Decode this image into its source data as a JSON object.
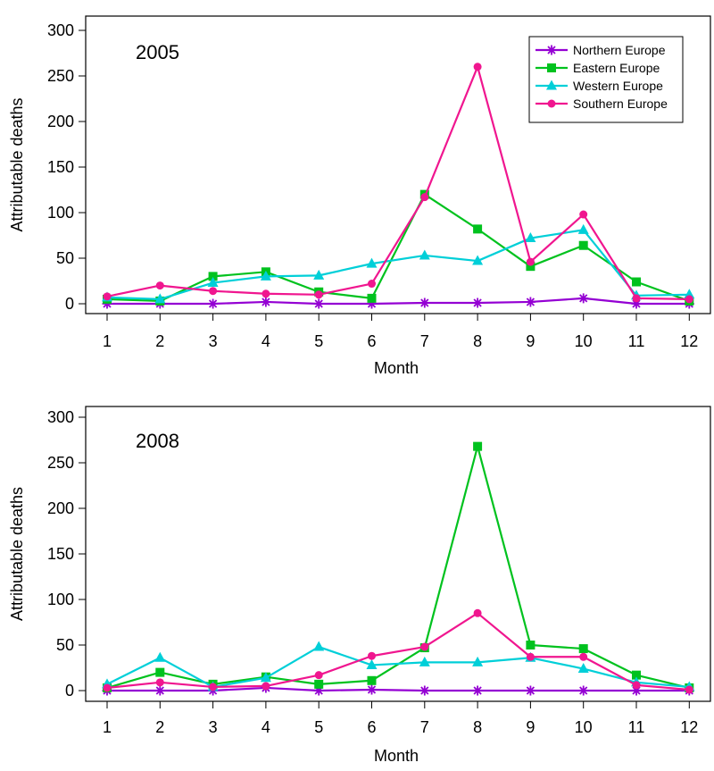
{
  "chart_data": [
    {
      "type": "line",
      "title": "2005",
      "xlabel": "Month",
      "ylabel": "Attributable deaths",
      "ylim": [
        0,
        300
      ],
      "yticks": [
        0,
        50,
        100,
        150,
        200,
        250,
        300
      ],
      "categories": [
        "1",
        "2",
        "3",
        "4",
        "5",
        "6",
        "7",
        "8",
        "9",
        "10",
        "11",
        "12"
      ],
      "legend": true,
      "series": [
        {
          "name": "Northern Europe",
          "color": "#9400d3",
          "marker": "asterisk",
          "values": [
            0,
            0,
            0,
            2,
            0,
            0,
            1,
            1,
            2,
            6,
            0,
            0
          ]
        },
        {
          "name": "Eastern Europe",
          "color": "#00c21e",
          "marker": "square",
          "values": [
            5,
            3,
            30,
            35,
            13,
            6,
            120,
            82,
            41,
            64,
            24,
            3
          ]
        },
        {
          "name": "Western Europe",
          "color": "#00cfd8",
          "marker": "triangle",
          "values": [
            7,
            5,
            23,
            30,
            31,
            44,
            53,
            47,
            72,
            81,
            9,
            10
          ]
        },
        {
          "name": "Southern Europe",
          "color": "#f0168f",
          "marker": "circle",
          "values": [
            8,
            20,
            14,
            11,
            10,
            22,
            117,
            260,
            46,
            98,
            6,
            5
          ]
        }
      ]
    },
    {
      "type": "line",
      "title": "2008",
      "xlabel": "Month",
      "ylabel": "Attributable deaths",
      "ylim": [
        0,
        300
      ],
      "yticks": [
        0,
        50,
        100,
        150,
        200,
        250,
        300
      ],
      "categories": [
        "1",
        "2",
        "3",
        "4",
        "5",
        "6",
        "7",
        "8",
        "9",
        "10",
        "11",
        "12"
      ],
      "legend": false,
      "series": [
        {
          "name": "Northern Europe",
          "color": "#9400d3",
          "marker": "asterisk",
          "values": [
            0,
            0,
            0,
            3,
            0,
            1,
            0,
            0,
            0,
            0,
            0,
            0
          ]
        },
        {
          "name": "Eastern Europe",
          "color": "#00c21e",
          "marker": "square",
          "values": [
            3,
            20,
            7,
            15,
            7,
            11,
            47,
            268,
            50,
            46,
            17,
            3
          ]
        },
        {
          "name": "Western Europe",
          "color": "#00cfd8",
          "marker": "triangle",
          "values": [
            7,
            36,
            4,
            14,
            48,
            28,
            31,
            31,
            36,
            24,
            9,
            4
          ]
        },
        {
          "name": "Southern Europe",
          "color": "#f0168f",
          "marker": "circle",
          "values": [
            3,
            9,
            4,
            5,
            17,
            38,
            48,
            85,
            37,
            37,
            6,
            1
          ]
        }
      ]
    }
  ]
}
